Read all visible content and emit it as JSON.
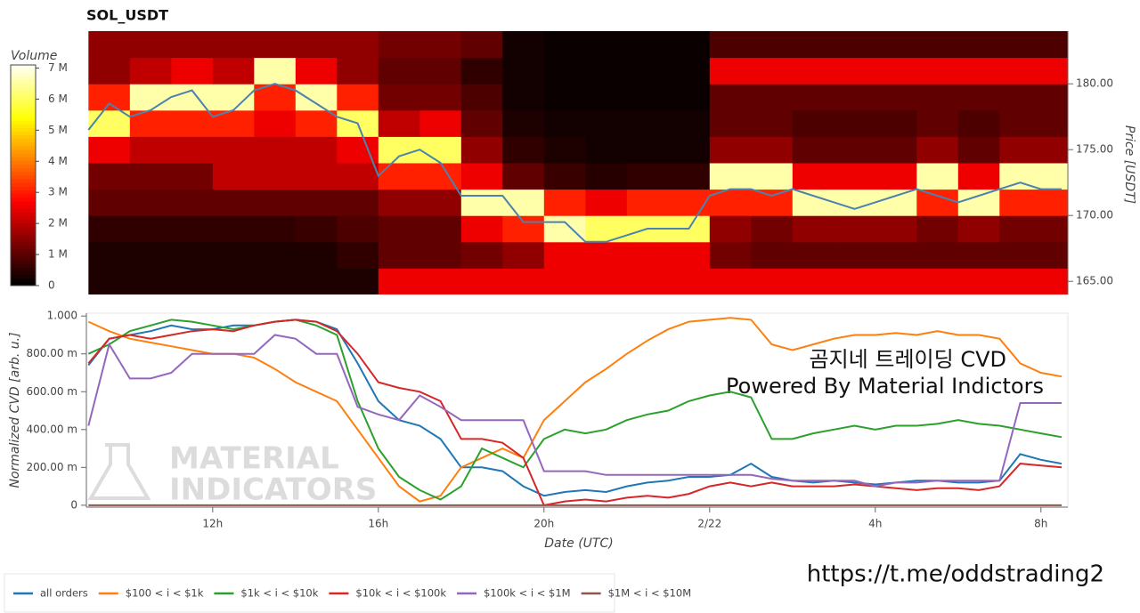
{
  "chart_data": [
    {
      "type": "heatmap",
      "title": "SOL_USDT",
      "colorbar_label": "Volume",
      "y_label": "Price [USDT]",
      "y_axis_side": "right",
      "colormap": "hot",
      "x_bins": [
        9,
        10,
        11,
        12,
        13,
        14,
        15,
        16,
        17,
        18,
        19,
        20,
        21,
        22,
        23,
        24,
        25,
        26,
        27,
        28,
        29,
        30,
        31,
        32,
        32.65
      ],
      "y_bins": [
        164,
        166,
        168,
        170,
        172,
        174,
        176,
        178,
        180,
        182,
        184
      ],
      "values": [
        [
          0.3,
          0.3,
          0.3,
          0.3,
          0.3,
          0.3,
          0.3,
          2.5,
          2.5,
          2.5,
          2.5,
          2.5,
          2.5,
          2.5,
          2.5,
          2.5,
          2.5,
          2.5,
          2.5,
          2.5,
          2.5,
          2.5,
          2.5,
          2.5
        ],
        [
          0.3,
          0.3,
          0.3,
          0.3,
          0.3,
          0.3,
          0.5,
          1,
          1,
          1.2,
          1.5,
          2.5,
          2.5,
          2.5,
          2.5,
          1.2,
          1,
          1,
          1,
          1,
          1,
          1,
          1,
          1
        ],
        [
          0.5,
          0.5,
          0.5,
          0.5,
          0.5,
          0.6,
          0.8,
          1,
          1,
          2.5,
          3,
          6.5,
          6,
          6,
          6,
          1.5,
          1.2,
          1.5,
          1.5,
          1.5,
          1.2,
          1.5,
          1.2,
          1.2
        ],
        [
          1,
          1,
          1,
          1,
          1,
          1,
          1,
          1.5,
          1.5,
          6.5,
          6.5,
          3,
          2.5,
          3,
          3,
          3,
          3,
          6.5,
          6.5,
          6.5,
          3,
          6.5,
          3,
          3
        ],
        [
          1.2,
          1.2,
          1.2,
          2,
          2,
          2,
          2,
          3,
          3,
          2.5,
          1,
          0.6,
          0.4,
          0.5,
          0.5,
          6.5,
          6.5,
          2.5,
          2.5,
          2.5,
          6.5,
          2.5,
          6.5,
          6.5
        ],
        [
          2.5,
          2,
          2,
          2,
          2,
          2,
          2.5,
          6,
          6,
          1.5,
          0.5,
          0.3,
          0.2,
          0.2,
          0.2,
          1.5,
          1.5,
          1,
          1,
          1,
          1.5,
          1,
          1.5,
          1.5
        ],
        [
          6,
          3,
          3,
          3,
          2.5,
          3,
          6,
          2,
          2.5,
          1,
          0.3,
          0.2,
          0.2,
          0.2,
          0.2,
          1,
          1,
          0.8,
          0.8,
          0.8,
          1,
          0.8,
          1,
          1
        ],
        [
          3,
          6.5,
          6.5,
          6.5,
          3,
          6.5,
          3,
          1.2,
          1.2,
          0.8,
          0.2,
          0.1,
          0.1,
          0.1,
          0.1,
          1,
          1,
          1,
          1,
          1,
          1,
          1,
          1,
          1
        ],
        [
          1.5,
          2,
          2.5,
          2,
          6.5,
          2.5,
          1.5,
          1,
          1,
          0.5,
          0.2,
          0.1,
          0.1,
          0.1,
          0.1,
          2.5,
          2.5,
          2.5,
          2.5,
          2.5,
          2.5,
          2.5,
          2.5,
          2.5
        ],
        [
          1.5,
          1.5,
          1.5,
          1.5,
          1.5,
          1.5,
          1.5,
          1.2,
          1.2,
          1,
          0.2,
          0.1,
          0.1,
          0.1,
          0.1,
          0.8,
          0.8,
          0.8,
          0.8,
          0.8,
          0.8,
          0.8,
          0.8,
          0.8
        ]
      ],
      "clim": [
        0,
        7.1
      ],
      "cticks": [
        0,
        {
          "value": 1,
          "label": "1 M"
        },
        {
          "value": 2,
          "label": "2 M"
        },
        {
          "value": 3,
          "label": "3 M"
        },
        {
          "value": 4,
          "label": "4 M"
        },
        {
          "value": 5,
          "label": "5 M"
        },
        {
          "value": 6,
          "label": "6 M"
        },
        {
          "value": 7,
          "label": "7 M"
        }
      ],
      "xlim": [
        8.95,
        32.65
      ],
      "ylim": [
        164,
        184
      ],
      "yticks": [
        {
          "value": 165,
          "label": "165.00"
        },
        {
          "value": 170,
          "label": "170.00"
        },
        {
          "value": 175,
          "label": "175.00"
        },
        {
          "value": 180,
          "label": "180.00"
        }
      ],
      "x": [
        9,
        9.5,
        10,
        10.5,
        11,
        11.5,
        12,
        12.5,
        13,
        13.5,
        14,
        14.5,
        15,
        15.5,
        16,
        16.5,
        17,
        17.5,
        18,
        18.5,
        19,
        19.5,
        20,
        20.5,
        21,
        21.5,
        22,
        22.5,
        23,
        23.5,
        24,
        24.5,
        25,
        25.5,
        26,
        26.5,
        27,
        27.5,
        28,
        28.5,
        29,
        29.5,
        30,
        30.5,
        31,
        31.5,
        32,
        32.5
      ],
      "line": {
        "color": "#4a82b0",
        "values": [
          176.5,
          178.5,
          177.5,
          178,
          179,
          179.5,
          177.5,
          178,
          179.5,
          180,
          179.5,
          178.5,
          177.5,
          177,
          173,
          174.5,
          175,
          174,
          171.5,
          171.5,
          171.5,
          169.5,
          169.5,
          169.5,
          168,
          168,
          168.5,
          169,
          169,
          169,
          171.5,
          172,
          172,
          171.5,
          172,
          171.5,
          171,
          170.5,
          171,
          171.5,
          172,
          171.5,
          171,
          171.5,
          172,
          172.5,
          172,
          172
        ]
      }
    },
    {
      "type": "line",
      "x_label": "Date (UTC)",
      "y_label": "Normalized CVD [arb. u.]",
      "legend": "bottom",
      "annotations": [
        "곰지네 트레이딩 CVD",
        "Powered By Material Indictors"
      ],
      "xlim": [
        8.95,
        32.65
      ],
      "ylim": [
        -0.01,
        1.015
      ],
      "xticks": [
        {
          "value": 12,
          "label": "12h"
        },
        {
          "value": 16,
          "label": "16h"
        },
        {
          "value": 20,
          "label": "20h"
        },
        {
          "value": 24,
          "label": "2/22"
        },
        {
          "value": 28,
          "label": "4h"
        },
        {
          "value": 32,
          "label": "8h"
        }
      ],
      "yticks": [
        0,
        {
          "value": 0.2,
          "label": "200.00 m"
        },
        {
          "value": 0.4,
          "label": "400.00 m"
        },
        {
          "value": 0.6,
          "label": "600.00 m"
        },
        {
          "value": 0.8,
          "label": "800.00 m"
        },
        {
          "value": 1,
          "label": "1.000"
        }
      ],
      "x": [
        9,
        9.5,
        10,
        10.5,
        11,
        11.5,
        12,
        12.5,
        13,
        13.5,
        14,
        14.5,
        15,
        15.5,
        16,
        16.5,
        17,
        17.5,
        18,
        18.5,
        19,
        19.5,
        20,
        20.5,
        21,
        21.5,
        22,
        22.5,
        23,
        23.5,
        24,
        24.5,
        25,
        25.5,
        26,
        26.5,
        27,
        27.5,
        28,
        28.5,
        29,
        29.5,
        30,
        30.5,
        31,
        31.5,
        32,
        32.5
      ],
      "series": [
        {
          "name": "all orders",
          "color": "#1f77b4",
          "values": [
            0.74,
            0.88,
            0.9,
            0.92,
            0.95,
            0.93,
            0.93,
            0.95,
            0.95,
            0.97,
            0.98,
            0.97,
            0.93,
            0.75,
            0.55,
            0.45,
            0.42,
            0.35,
            0.2,
            0.2,
            0.18,
            0.1,
            0.05,
            0.07,
            0.08,
            0.07,
            0.1,
            0.12,
            0.13,
            0.15,
            0.15,
            0.16,
            0.22,
            0.15,
            0.13,
            0.12,
            0.13,
            0.12,
            0.11,
            0.12,
            0.13,
            0.13,
            0.12,
            0.12,
            0.13,
            0.27,
            0.24,
            0.22
          ]
        },
        {
          "name": "$100 < i < $1k",
          "color": "#ff7f0e",
          "values": [
            0.97,
            0.92,
            0.88,
            0.86,
            0.84,
            0.82,
            0.8,
            0.8,
            0.78,
            0.72,
            0.65,
            0.6,
            0.55,
            0.4,
            0.25,
            0.1,
            0.02,
            0.05,
            0.2,
            0.25,
            0.3,
            0.25,
            0.45,
            0.55,
            0.65,
            0.72,
            0.8,
            0.87,
            0.93,
            0.97,
            0.98,
            0.99,
            0.98,
            0.85,
            0.82,
            0.85,
            0.88,
            0.9,
            0.9,
            0.91,
            0.9,
            0.92,
            0.9,
            0.9,
            0.88,
            0.75,
            0.7,
            0.68
          ]
        },
        {
          "name": "$1k < i < $10k",
          "color": "#2ca02c",
          "values": [
            0.8,
            0.85,
            0.92,
            0.95,
            0.98,
            0.97,
            0.95,
            0.93,
            0.95,
            0.97,
            0.98,
            0.95,
            0.9,
            0.55,
            0.3,
            0.15,
            0.08,
            0.03,
            0.1,
            0.3,
            0.25,
            0.2,
            0.35,
            0.4,
            0.38,
            0.4,
            0.45,
            0.48,
            0.5,
            0.55,
            0.58,
            0.6,
            0.57,
            0.35,
            0.35,
            0.38,
            0.4,
            0.42,
            0.4,
            0.42,
            0.42,
            0.43,
            0.45,
            0.43,
            0.42,
            0.4,
            0.38,
            0.36
          ]
        },
        {
          "name": "$10k < i < $100k",
          "color": "#d62728",
          "values": [
            0.75,
            0.88,
            0.9,
            0.88,
            0.9,
            0.92,
            0.93,
            0.92,
            0.95,
            0.97,
            0.98,
            0.97,
            0.92,
            0.8,
            0.65,
            0.62,
            0.6,
            0.55,
            0.35,
            0.35,
            0.33,
            0.25,
            0,
            0.02,
            0.03,
            0.02,
            0.04,
            0.05,
            0.04,
            0.06,
            0.1,
            0.12,
            0.1,
            0.12,
            0.1,
            0.1,
            0.1,
            0.11,
            0.1,
            0.09,
            0.08,
            0.09,
            0.09,
            0.08,
            0.1,
            0.22,
            0.21,
            0.2
          ]
        },
        {
          "name": "$100k < i < $1M",
          "color": "#9467bd",
          "values": [
            0.42,
            0.85,
            0.67,
            0.67,
            0.7,
            0.8,
            0.8,
            0.8,
            0.8,
            0.9,
            0.88,
            0.8,
            0.8,
            0.52,
            0.48,
            0.45,
            0.58,
            0.52,
            0.45,
            0.45,
            0.45,
            0.45,
            0.18,
            0.18,
            0.18,
            0.16,
            0.16,
            0.16,
            0.16,
            0.16,
            0.16,
            0.16,
            0.16,
            0.14,
            0.13,
            0.13,
            0.13,
            0.13,
            0.1,
            0.12,
            0.12,
            0.13,
            0.13,
            0.13,
            0.13,
            0.54,
            0.54,
            0.54
          ]
        },
        {
          "name": "$1M < i < $10M",
          "color": "#8c564b",
          "values": [
            0,
            0,
            0,
            0,
            0,
            0,
            0,
            0,
            0,
            0,
            0,
            0,
            0,
            0,
            0,
            0,
            0,
            0,
            0,
            0,
            0,
            0,
            0,
            0,
            0,
            0,
            0,
            0,
            0,
            0,
            0,
            0,
            0,
            0,
            0,
            0,
            0,
            0,
            0,
            0,
            0,
            0,
            0,
            0,
            0,
            0,
            0,
            0
          ]
        }
      ]
    }
  ],
  "watermark": [
    "MATERIAL",
    "INDICATORS"
  ],
  "caption": "https://t.me/oddstrading2"
}
